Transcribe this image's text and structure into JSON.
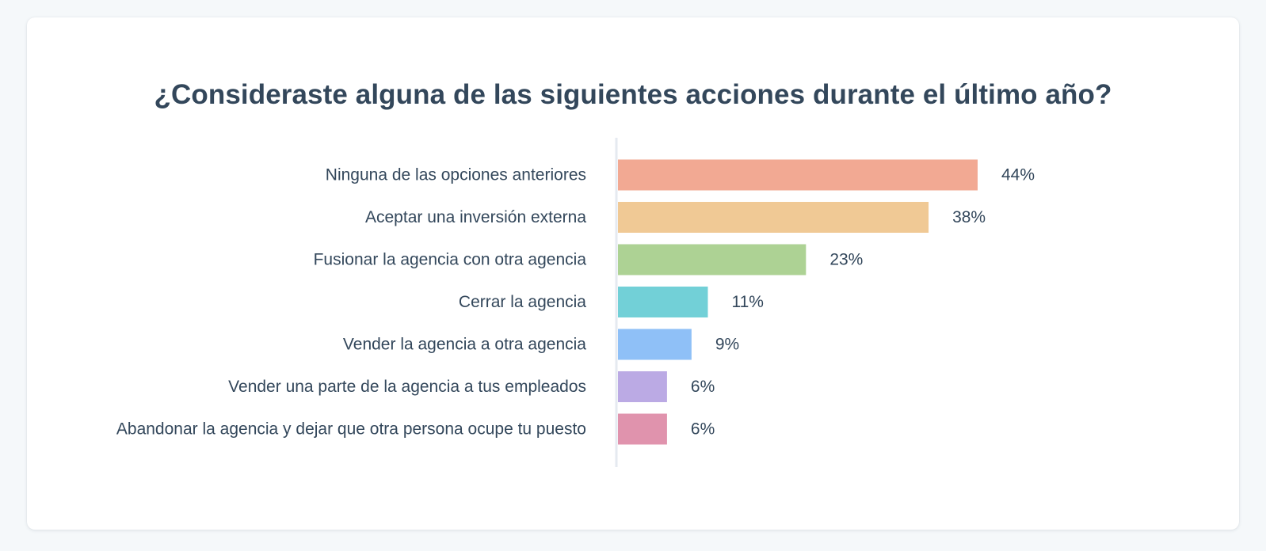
{
  "chart_data": {
    "type": "bar",
    "orientation": "horizontal",
    "title": "¿Consideraste alguna de las siguientes acciones durante el último año?",
    "xlabel": "",
    "ylabel": "",
    "xlim": [
      0,
      44
    ],
    "grid": false,
    "categories": [
      "Ninguna de las opciones anteriores",
      "Aceptar una inversión externa",
      "Fusionar la agencia con otra agencia",
      "Cerrar la agencia",
      "Vender la agencia a otra agencia",
      "Vender una parte de la agencia a tus empleados",
      "Abandonar la agencia y dejar que otra persona ocupe tu puesto"
    ],
    "values": [
      44,
      38,
      23,
      11,
      9,
      6,
      6
    ],
    "value_labels": [
      "44%",
      "38%",
      "23%",
      "11%",
      "9%",
      "6%",
      "6%"
    ],
    "colors": [
      "#f2a993",
      "#f0c995",
      "#add294",
      "#72d0d7",
      "#8fc0f7",
      "#bbaae4",
      "#e093ad"
    ]
  },
  "colors": {
    "background": "#f5f8fa",
    "card": "#ffffff",
    "text": "#33475b",
    "axis": "#e5eaf0"
  }
}
